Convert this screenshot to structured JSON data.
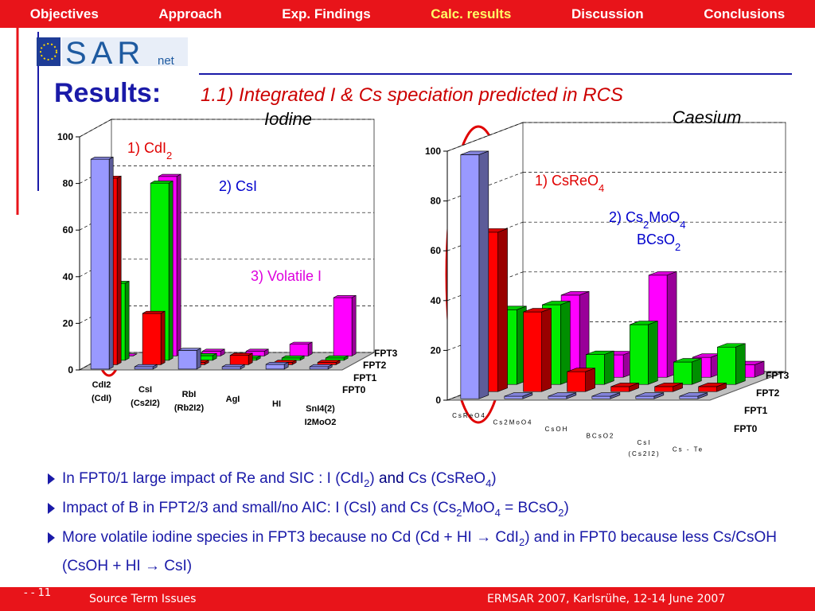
{
  "nav": [
    "Objectives",
    "Approach",
    "Exp. Findings",
    "Calc. results",
    "Discussion",
    "Conclusions"
  ],
  "logo": {
    "main": "SAR",
    "sub": "net"
  },
  "heading": "Results:",
  "subheading": "1.1) Integrated I & Cs speciation predicted in RCS",
  "chart_data": [
    {
      "type": "bar3d",
      "title": "Iodine",
      "categories": [
        [
          "CdI2",
          "(CdI)"
        ],
        [
          "CsI",
          "(Cs2I2)"
        ],
        [
          "RbI",
          "(Rb2I2)"
        ],
        [
          "AgI"
        ],
        [
          "HI"
        ],
        [
          "SnI4(2)",
          "I2MoO2"
        ]
      ],
      "series": [
        {
          "name": "FPT0",
          "color": "#9999ff",
          "values": [
            90,
            1,
            8,
            1,
            2,
            1
          ]
        },
        {
          "name": "FPT1",
          "color": "#ff0000",
          "values": [
            80,
            22,
            1,
            4,
            1,
            1
          ]
        },
        {
          "name": "FPT2",
          "color": "#00ee00",
          "values": [
            33,
            76,
            2,
            1,
            1,
            1
          ]
        },
        {
          "name": "FPT3",
          "color": "#ff00ff",
          "values": [
            0,
            77,
            2,
            2,
            5,
            25
          ]
        }
      ],
      "ylim": [
        0,
        100
      ],
      "yticks": [
        0,
        20,
        40,
        60,
        80,
        100
      ],
      "grid": true,
      "annotations": [
        {
          "color": "#e00000",
          "parts": [
            {
              "text": "1) CdI"
            },
            {
              "sub": "2"
            }
          ]
        },
        {
          "color": "#0000cc",
          "parts": [
            {
              "text": "2) CsI"
            }
          ]
        },
        {
          "color": "#dd00dd",
          "parts": [
            {
              "text": "3) Volatile I"
            }
          ]
        }
      ]
    },
    {
      "type": "bar3d",
      "title": "Caesium",
      "categories": [
        [
          "CsReO4"
        ],
        [
          "Cs2MoO4"
        ],
        [
          "CsOH"
        ],
        [
          "BCsO2"
        ],
        [
          "CsI",
          "(Cs2I2)"
        ],
        [
          "Cs - Te"
        ]
      ],
      "series": [
        {
          "name": "FPT0",
          "color": "#9999ff",
          "values": [
            98,
            1,
            1,
            1,
            1,
            1
          ]
        },
        {
          "name": "FPT1",
          "color": "#ff0000",
          "values": [
            64,
            32,
            8,
            2,
            2,
            2
          ]
        },
        {
          "name": "FPT2",
          "color": "#00ee00",
          "values": [
            30,
            32,
            12,
            24,
            9,
            15
          ]
        },
        {
          "name": "FPT3",
          "color": "#ff00ff",
          "values": [
            2,
            33,
            9,
            41,
            8,
            5
          ]
        }
      ],
      "ylim": [
        0,
        100
      ],
      "yticks": [
        0,
        20,
        40,
        60,
        80,
        100
      ],
      "grid": true,
      "annotations": [
        {
          "color": "#e00000",
          "parts": [
            {
              "text": "1) CsReO"
            },
            {
              "sub": "4"
            }
          ]
        },
        {
          "color": "#0000cc",
          "parts": [
            {
              "text": "2) Cs"
            },
            {
              "sub": "2"
            },
            {
              "text": "MoO"
            },
            {
              "sub": "4"
            }
          ]
        },
        {
          "color": "#0000cc",
          "parts": [
            {
              "text": "BCsO"
            },
            {
              "sub": "2"
            }
          ]
        }
      ]
    }
  ],
  "bullets": [
    [
      {
        "text": "In FPT0/1 large impact of Re and SIC : I (CdI"
      },
      {
        "sub": "2"
      },
      {
        "text": ") "
      },
      {
        "text": "and",
        "color": "#000080"
      },
      {
        "text": " Cs (CsReO"
      },
      {
        "sub": "4"
      },
      {
        "text": ")"
      }
    ],
    [
      {
        "text": "Impact of B in FPT2/3 and small/no AIC: I (CsI) and Cs (Cs"
      },
      {
        "sub": "2"
      },
      {
        "text": "MoO"
      },
      {
        "sub": "4"
      },
      {
        "text": " = BCsO"
      },
      {
        "sub": "2"
      },
      {
        "text": ")"
      }
    ],
    [
      {
        "text": "More volatile iodine species in FPT3 because no Cd (Cd + HI  → CdI"
      },
      {
        "sub": "2"
      },
      {
        "text": ") and in FPT0 because less Cs/CsOH (CsOH + HI  →  CsI)"
      }
    ]
  ],
  "footer": {
    "page": "-  - 11",
    "left": "Source Term Issues",
    "right": "ERMSAR 2007, Karlsrühe, 12-14 June 2007"
  }
}
